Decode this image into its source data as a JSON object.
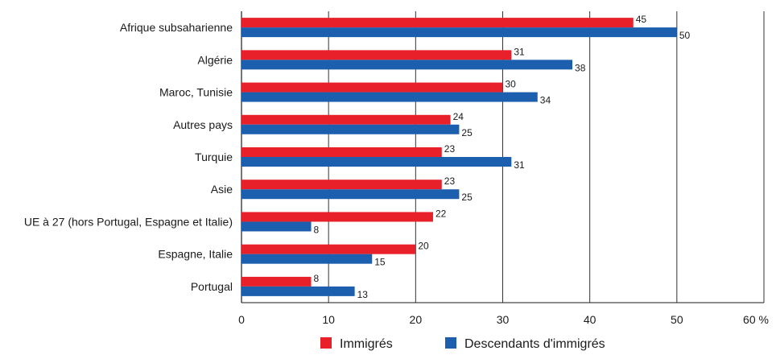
{
  "chart_data": {
    "type": "bar",
    "orientation": "horizontal",
    "categories": [
      "Afrique subsaharienne",
      "Algérie",
      "Maroc, Tunisie",
      "Autres pays",
      "Turquie",
      "Asie",
      "UE à 27 (hors Portugal, Espagne et Italie)",
      "Espagne, Italie",
      "Portugal"
    ],
    "series": [
      {
        "name": "Immigrés",
        "color": "#e8202a",
        "values": [
          45,
          31,
          30,
          24,
          23,
          23,
          22,
          20,
          8
        ]
      },
      {
        "name": "Descendants d'immigrés",
        "color": "#1c5fae",
        "values": [
          50,
          38,
          34,
          25,
          31,
          25,
          8,
          15,
          13
        ]
      }
    ],
    "xticks": [
      "0",
      "10",
      "20",
      "30",
      "40",
      "50",
      "60 %"
    ],
    "xlim": [
      0,
      60
    ],
    "grid": "vertical",
    "legend_position": "bottom-center"
  }
}
